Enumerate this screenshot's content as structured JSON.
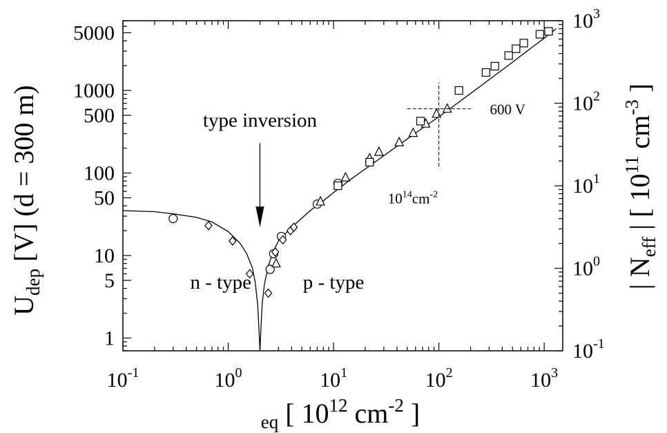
{
  "chart_data": {
    "type": "scatter",
    "x_scale": "log",
    "y_scale": "log",
    "xlim": [
      0.1,
      1500
    ],
    "ylim": [
      0.7,
      7000
    ],
    "y2lim": [
      0.1,
      1000
    ],
    "xlabel": {
      "sub": "eq",
      "main": "[ 10",
      "sup": "12",
      "unit": " cm",
      "unit_sup": "-2",
      "close": " ]"
    },
    "ylabel": {
      "main": "U",
      "sub": "dep",
      "rest": " [V]  (d = 300  m)"
    },
    "y2label": {
      "main": "| N",
      "sub": "eff",
      "rest": " |  [ 10",
      "sup": "11",
      "unit": " cm",
      "unit_sup": "-3",
      "close": " ]"
    },
    "x_ticks": [
      {
        "value": 0.1,
        "base": "10",
        "exp": "-1"
      },
      {
        "value": 1,
        "base": "10",
        "exp": "0"
      },
      {
        "value": 10,
        "base": "10",
        "exp": "1"
      },
      {
        "value": 100,
        "base": "10",
        "exp": "2"
      },
      {
        "value": 1000,
        "base": "10",
        "exp": "3"
      }
    ],
    "y_ticks": [
      {
        "value": 5000,
        "label": "5000"
      },
      {
        "value": 1000,
        "label": "1000"
      },
      {
        "value": 500,
        "label": "500"
      },
      {
        "value": 100,
        "label": "100"
      },
      {
        "value": 50,
        "label": "50"
      },
      {
        "value": 10,
        "label": "10"
      },
      {
        "value": 5,
        "label": "5"
      },
      {
        "value": 1,
        "label": "1"
      }
    ],
    "y2_ticks": [
      {
        "value": 1000,
        "base": "10",
        "exp": "3"
      },
      {
        "value": 100,
        "base": "10",
        "exp": "2"
      },
      {
        "value": 10,
        "base": "10",
        "exp": "1"
      },
      {
        "value": 1,
        "base": "10",
        "exp": "0"
      },
      {
        "value": 0.1,
        "base": "10",
        "exp": "-1"
      }
    ],
    "curve": [
      [
        0.1,
        35
      ],
      [
        0.2,
        34
      ],
      [
        0.3,
        32
      ],
      [
        0.5,
        29
      ],
      [
        0.7,
        25.5
      ],
      [
        1.0,
        19.5
      ],
      [
        1.3,
        14
      ],
      [
        1.5,
        10.5
      ],
      [
        1.7,
        7
      ],
      [
        1.8,
        4.8
      ],
      [
        1.9,
        2.6
      ],
      [
        1.95,
        1.4
      ],
      [
        2.0,
        0.7
      ],
      [
        2.05,
        1.4
      ],
      [
        2.1,
        2.6
      ],
      [
        2.2,
        4.4
      ],
      [
        2.4,
        7.5
      ],
      [
        2.7,
        11.5
      ],
      [
        3,
        15
      ],
      [
        4,
        22
      ],
      [
        6,
        35
      ],
      [
        8,
        46
      ],
      [
        10,
        58
      ],
      [
        15,
        86
      ],
      [
        20,
        112
      ],
      [
        30,
        162
      ],
      [
        50,
        258
      ],
      [
        70,
        350
      ],
      [
        100,
        480
      ],
      [
        150,
        700
      ],
      [
        200,
        920
      ],
      [
        300,
        1350
      ],
      [
        500,
        2200
      ],
      [
        700,
        3050
      ],
      [
        1000,
        4300
      ],
      [
        1300,
        5600
      ]
    ],
    "series": [
      {
        "marker": "circle",
        "points": [
          [
            0.3,
            28
          ],
          [
            2.5,
            6.8
          ],
          [
            2.7,
            10.5
          ],
          [
            3.2,
            17
          ],
          [
            7,
            42
          ],
          [
            11,
            75
          ]
        ]
      },
      {
        "marker": "diamond",
        "points": [
          [
            0.65,
            23
          ],
          [
            1.1,
            15
          ],
          [
            1.6,
            6
          ],
          [
            2.4,
            3.5
          ],
          [
            2.8,
            11
          ],
          [
            3.3,
            15.5
          ],
          [
            3.9,
            20
          ],
          [
            4.2,
            22
          ]
        ]
      },
      {
        "marker": "triangle",
        "points": [
          [
            2.85,
            8
          ],
          [
            7.5,
            45
          ],
          [
            13,
            88
          ],
          [
            22,
            150
          ],
          [
            27,
            180
          ],
          [
            42,
            235
          ],
          [
            57,
            305
          ],
          [
            75,
            395
          ],
          [
            95,
            520
          ],
          [
            120,
            600
          ]
        ]
      },
      {
        "marker": "square",
        "points": [
          [
            11,
            70
          ],
          [
            22,
            135
          ],
          [
            67,
            425
          ],
          [
            155,
            1000
          ],
          [
            280,
            1650
          ],
          [
            340,
            1970
          ],
          [
            460,
            2650
          ],
          [
            540,
            3200
          ],
          [
            640,
            3750
          ],
          [
            910,
            4800
          ],
          [
            1100,
            5200
          ]
        ]
      }
    ],
    "annotations": {
      "type_inversion": {
        "text": "type inversion",
        "x": 2.0,
        "y_text": 440,
        "y_arrow_start": 230,
        "y_arrow_end": 22
      },
      "n_type": {
        "text": "n - type",
        "x": 0.85,
        "y": 4.8
      },
      "p_type": {
        "text": "p - type",
        "x": 10,
        "y": 4.8
      },
      "v600": {
        "text": "600 V",
        "x": 450,
        "y": 600
      },
      "dose": {
        "base": "10",
        "sup": "14",
        "unit": "cm",
        "unit_sup": "-2",
        "x": 60,
        "y": 50
      },
      "crosshair": {
        "x": 100,
        "y": 600,
        "h_from": 50,
        "h_to": 200,
        "v_from": 120,
        "v_to": 1250
      }
    }
  }
}
